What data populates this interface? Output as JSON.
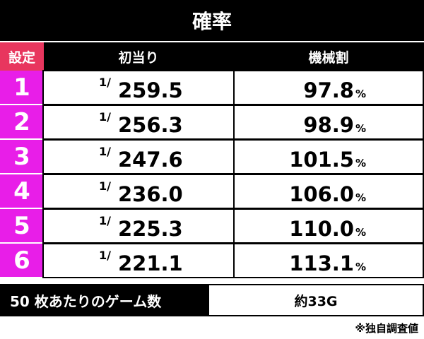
{
  "title": "確率",
  "header": {
    "setting": "設定",
    "first_hit": "初当り",
    "payout": "機械割"
  },
  "rows": [
    {
      "setting": "1",
      "odds": "1/",
      "denominator": "259.5",
      "payout": "97.8",
      "unit": "%"
    },
    {
      "setting": "2",
      "odds": "1/",
      "denominator": "256.3",
      "payout": "98.9",
      "unit": "%"
    },
    {
      "setting": "3",
      "odds": "1/",
      "denominator": "247.6",
      "payout": "101.5",
      "unit": "%"
    },
    {
      "setting": "4",
      "odds": "1/",
      "denominator": "236.0",
      "payout": "106.0",
      "unit": "%"
    },
    {
      "setting": "5",
      "odds": "1/",
      "denominator": "225.3",
      "payout": "110.0",
      "unit": "%"
    },
    {
      "setting": "6",
      "odds": "1/",
      "denominator": "221.1",
      "payout": "113.1",
      "unit": "%"
    }
  ],
  "footer": {
    "label": "50 枚あたりのゲーム数",
    "value": "約33G"
  },
  "note": "※独自調査値"
}
